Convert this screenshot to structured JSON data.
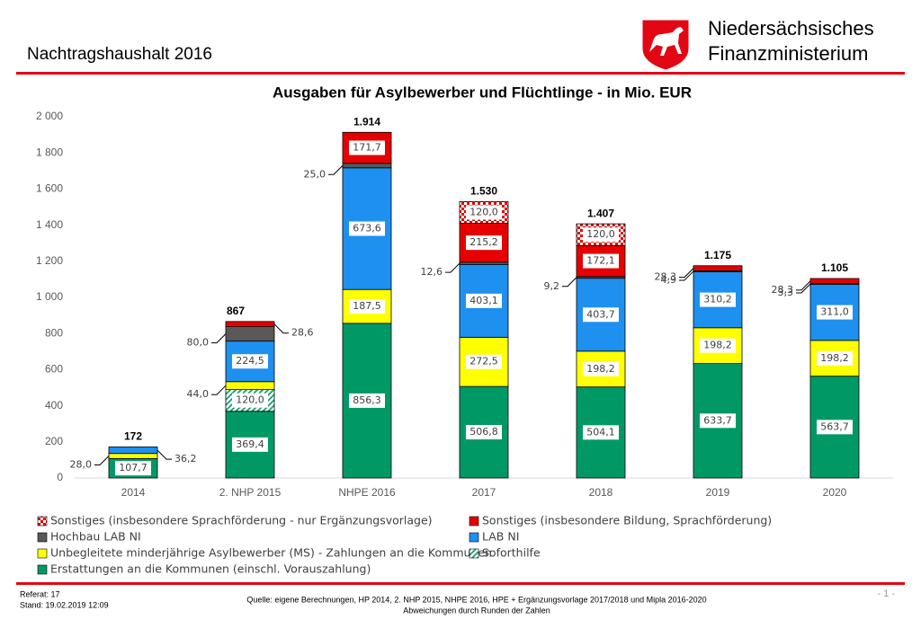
{
  "header": {
    "title": "Nachtragshaushalt 2016",
    "org": [
      "Niedersächsisches",
      "Finanzministerium"
    ]
  },
  "chart_data": {
    "type": "bar",
    "stacked": true,
    "title": "Ausgaben für Asylbewerber und Flüchtlinge - in Mio. EUR",
    "categories": [
      "2014",
      "2. NHP 2015",
      "NHPE 2016",
      "2017",
      "2018",
      "2019",
      "2020"
    ],
    "series": [
      {
        "name": "Sonstiges  (insbesondere Sprachförderung - nur Ergänzungsvorlage)",
        "color": "#e60000",
        "hatch": true,
        "values": [
          null,
          null,
          null,
          120.0,
          120.0,
          null,
          null
        ],
        "value_labels": [
          null,
          null,
          null,
          "120,0",
          "120,0",
          null,
          null
        ]
      },
      {
        "name": "Sonstiges (insbesondere Bildung, Sprachförderung)",
        "color": "#e60000",
        "hatch": false,
        "values": [
          null,
          28.6,
          171.7,
          215.2,
          172.1,
          28.3,
          28.3
        ],
        "value_labels": [
          null,
          "28,6",
          "171,7",
          "215,2",
          "172,1",
          "28,3",
          "28,3"
        ]
      },
      {
        "name": "Hochbau LAB NI",
        "color": "#595959",
        "hatch": false,
        "values": [
          null,
          80.0,
          25.0,
          12.6,
          9.2,
          4.9,
          3.3
        ],
        "value_labels": [
          null,
          "80,0",
          "25,0",
          "12,6",
          "9,2",
          "4,9",
          "3,3"
        ]
      },
      {
        "name": "LAB NI",
        "color": "#1e90f0",
        "hatch": false,
        "values": [
          36.2,
          224.5,
          673.6,
          403.1,
          403.7,
          310.2,
          311.0
        ],
        "value_labels": [
          "36,2",
          "224,5",
          "673,6",
          "403,1",
          "403,7",
          "310,2",
          "311,0"
        ]
      },
      {
        "name": "Unbegleitete minderjährige Asylbewerber (MS) - Zahlungen an die Kommunen",
        "color": "#ffff00",
        "hatch": false,
        "values": [
          28.0,
          44.0,
          187.5,
          272.5,
          198.2,
          198.2,
          198.2
        ],
        "value_labels": [
          "28,0",
          "44,0",
          "187,5",
          "272,5",
          "198,2",
          "198,2",
          "198,2"
        ]
      },
      {
        "name": "Soforthilfe",
        "color": "#009966",
        "hatch": true,
        "values": [
          null,
          120.0,
          null,
          null,
          null,
          null,
          null
        ],
        "value_labels": [
          null,
          "120,0",
          null,
          null,
          null,
          null,
          null
        ]
      },
      {
        "name": "Erstattungen an die Kommunen (einschl. Vorauszahlung)",
        "color": "#009966",
        "hatch": false,
        "values": [
          107.7,
          369.4,
          856.3,
          506.8,
          504.1,
          633.7,
          563.7
        ],
        "value_labels": [
          "107,7",
          "369,4",
          "856,3",
          "506,8",
          "504,1",
          "633,7",
          "563,7"
        ]
      }
    ],
    "totals": {
      "values": [
        172,
        867,
        1914,
        1530,
        1407,
        1175,
        1105
      ],
      "value_labels": [
        "172",
        "867",
        "1.914",
        "1.530",
        "1.407",
        "1.175",
        "1.105"
      ]
    },
    "ylim": [
      0,
      2000
    ],
    "yticks": [
      0,
      200,
      400,
      600,
      800,
      {
        "value": 1000,
        "label": "1 000"
      },
      {
        "value": 1200,
        "label": "1 200"
      },
      {
        "value": 1400,
        "label": "1 400"
      },
      {
        "value": 1600,
        "label": "1 600"
      },
      {
        "value": 1800,
        "label": "1 800"
      },
      {
        "value": 2000,
        "label": "2 000"
      }
    ],
    "grid": false
  },
  "footer": {
    "referat": "Referat: 17",
    "stand": "Stand: 19.02.2019 12:09",
    "source": "Quelle: eigene Berechnungen, HP 2014, 2. NHP 2015, NHPE 2016, HPE + Ergänzungsvorlage  2017/2018 und Mipla 2016-2020",
    "note": "Abweichungen durch Runden der Zahlen",
    "page": "- 1 -"
  }
}
